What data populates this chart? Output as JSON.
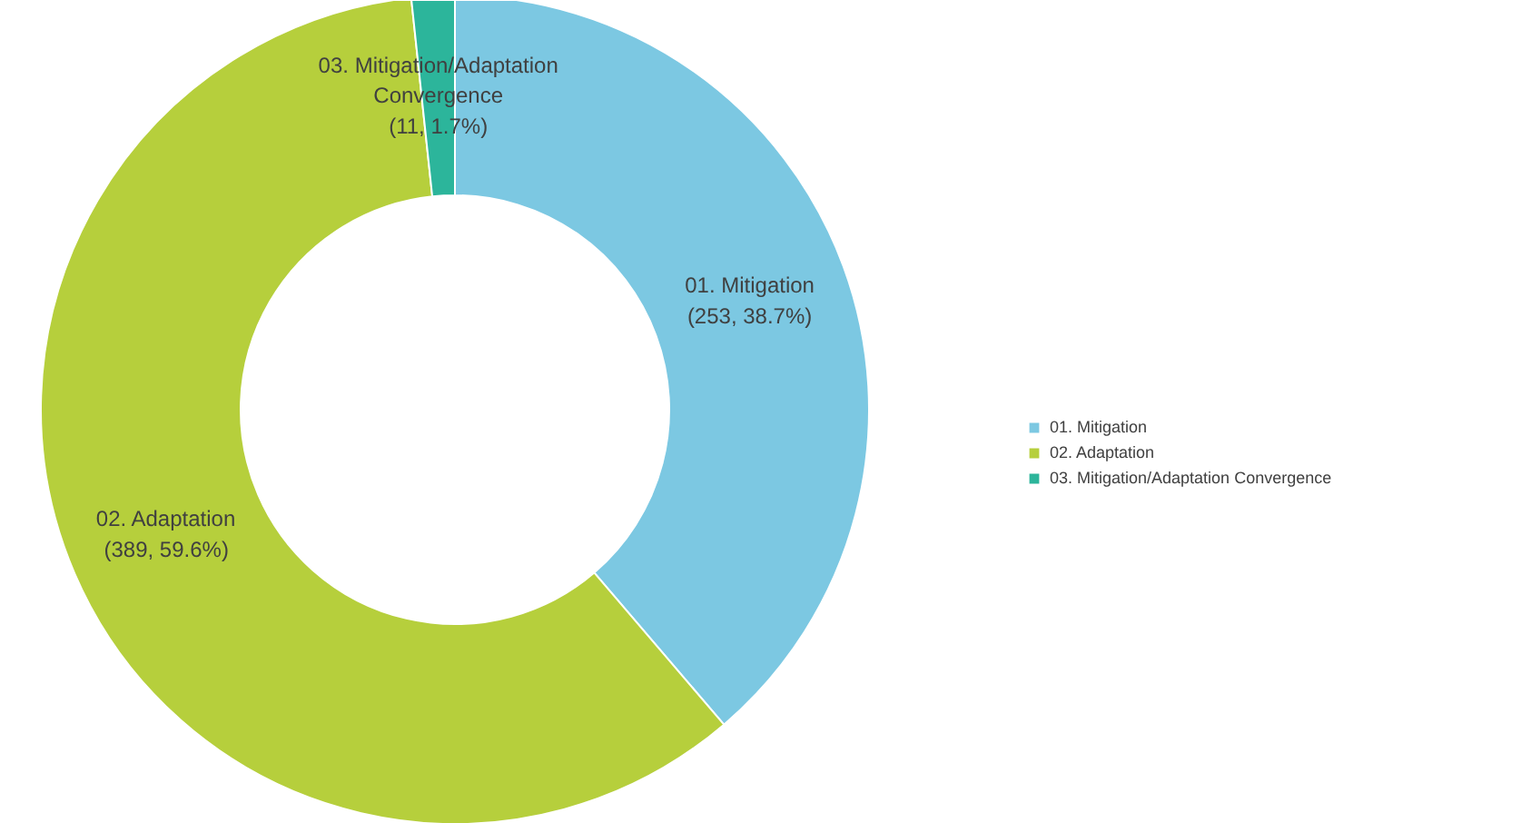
{
  "chart_data": {
    "type": "donut",
    "categories": [
      "01. Mitigation",
      "02. Adaptation",
      "03. Mitigation/Adaptation Convergence"
    ],
    "values": [
      253,
      389,
      11
    ],
    "colors": [
      "#7cc8e2",
      "#b6cf3c",
      "#2cb59b"
    ],
    "value_labels": [
      "(253, 38.7%)",
      "(389, 59.6%)",
      "(11, 1.7%)"
    ],
    "legend": "right"
  }
}
